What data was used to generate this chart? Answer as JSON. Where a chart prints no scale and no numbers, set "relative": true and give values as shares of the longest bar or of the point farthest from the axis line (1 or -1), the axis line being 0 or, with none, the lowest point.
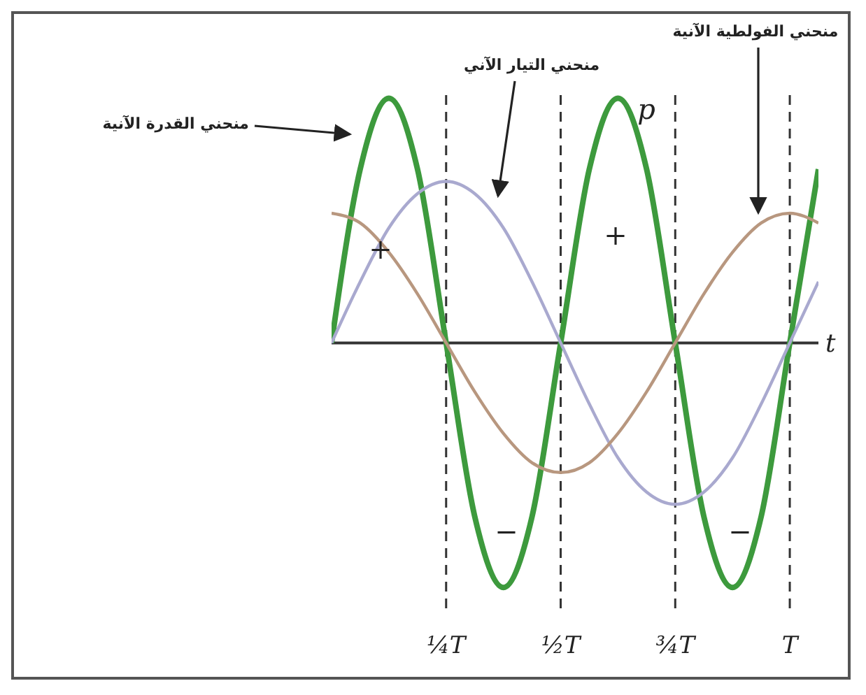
{
  "chart_data": {
    "type": "line",
    "relative": true,
    "xlabel": "t",
    "categories": [
      null,
      null,
      null,
      null,
      "¼T",
      null,
      null,
      null,
      "½T",
      null,
      null,
      null,
      "¾T",
      null,
      null,
      null,
      "T",
      null
    ],
    "series": [
      {
        "name": "منحني القدرة الآنية",
        "color": "#3d9a3d",
        "values": [
          0,
          0.71,
          1,
          0.71,
          0,
          -0.71,
          -1,
          -0.71,
          0,
          0.71,
          1,
          0.71,
          0,
          -0.71,
          -1,
          -0.71,
          0,
          0.71
        ]
      },
      {
        "name": "منحني التيار الآني",
        "color": "#a9a9cf",
        "values": [
          0,
          0.25,
          0.47,
          0.61,
          0.66,
          0.61,
          0.47,
          0.25,
          0,
          -0.25,
          -0.47,
          -0.61,
          -0.66,
          -0.61,
          -0.47,
          -0.25,
          0,
          0.25
        ]
      },
      {
        "name": "منحني الفولطية الآنية",
        "color": "#b8977f",
        "values": [
          0.53,
          0.49,
          0.37,
          0.2,
          0,
          -0.2,
          -0.37,
          -0.49,
          -0.53,
          -0.49,
          -0.37,
          -0.2,
          0,
          0.2,
          0.37,
          0.49,
          0.53,
          0.49
        ]
      }
    ],
    "annotations": [
      "+",
      "+",
      "−",
      "−",
      "p"
    ],
    "grid": "x",
    "legend": false,
    "marker": "none",
    "line_style": "solid"
  }
}
